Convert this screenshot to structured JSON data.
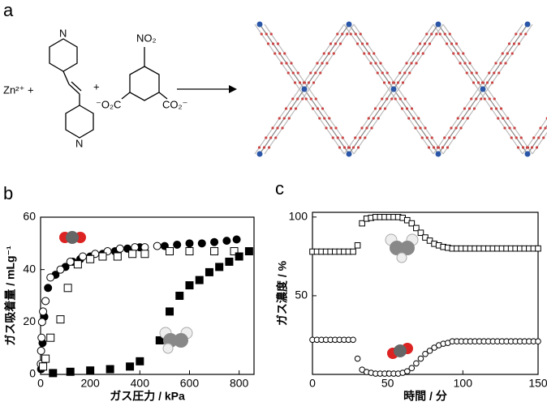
{
  "scheme": {
    "label": "a",
    "metal": "Zn²⁺ +",
    "plus": "+",
    "pyridine_n": [
      "N",
      "N"
    ],
    "nitro": "NO₂",
    "carboxylate_left": "⁻O₂C",
    "carboxylate_right": "CO₂⁻"
  },
  "chart_data": [
    {
      "type": "scatter",
      "label": "b",
      "xlabel": "ガス圧力 / kPa",
      "ylabel": "ガス吸着量 / mLg⁻¹",
      "xlim": [
        0,
        860
      ],
      "ylim": [
        0,
        60
      ],
      "xticks": [
        0,
        200,
        400,
        600,
        800
      ],
      "yticks": [
        0,
        20,
        40,
        60
      ],
      "series": [
        {
          "color": "#000000",
          "marker": "circle",
          "filled": true,
          "x": [
            2,
            5,
            8,
            15,
            30,
            60,
            100,
            130,
            160,
            200,
            250,
            300,
            350,
            400,
            500,
            550,
            600,
            650,
            700,
            750,
            790
          ],
          "values": [
            2,
            4,
            12,
            22,
            33,
            38,
            41,
            43,
            44,
            45,
            46,
            47,
            48,
            48.5,
            49,
            49.5,
            50,
            50,
            50.5,
            51,
            51.5
          ]
        },
        {
          "color": "#000000",
          "marker": "circle",
          "filled": false,
          "x": [
            1,
            2,
            4,
            6,
            10,
            20,
            40,
            80,
            120,
            170,
            220,
            270,
            320,
            380,
            420,
            470
          ],
          "values": [
            4,
            9,
            14,
            20,
            24,
            28,
            37,
            40,
            43,
            45,
            46,
            47,
            48,
            48.5,
            48.5,
            49
          ]
        },
        {
          "color": "#000000",
          "marker": "square",
          "filled": false,
          "x": [
            10,
            20,
            40,
            80,
            110,
            150,
            200,
            250,
            310,
            370,
            420,
            520,
            600,
            700,
            780
          ],
          "values": [
            3,
            6,
            14,
            21,
            33,
            42,
            44,
            45,
            45,
            46,
            46,
            47,
            47,
            47,
            47
          ]
        },
        {
          "color": "#000000",
          "marker": "square",
          "filled": true,
          "x": [
            50,
            120,
            200,
            280,
            360,
            400,
            480,
            520,
            560,
            600,
            640,
            680,
            720,
            760,
            800,
            840
          ],
          "values": [
            0.5,
            1,
            1.5,
            2,
            3,
            5,
            13,
            24,
            30,
            34,
            36,
            39,
            41,
            43,
            45,
            47
          ]
        }
      ]
    },
    {
      "type": "scatter",
      "label": "c",
      "xlabel": "時間 / 分",
      "ylabel": "ガス濃度 / %",
      "xlim": [
        0,
        150
      ],
      "ylim": [
        0,
        103
      ],
      "xticks": [
        0,
        50,
        100,
        150
      ],
      "yticks": [
        50,
        100
      ],
      "x": [
        0,
        3,
        6,
        9,
        12,
        15,
        18,
        21,
        24,
        27,
        30,
        33,
        36,
        39,
        42,
        45,
        48,
        51,
        54,
        57,
        60,
        63,
        66,
        69,
        72,
        75,
        78,
        81,
        84,
        87,
        90,
        93,
        96,
        99,
        102,
        105,
        108,
        111,
        114,
        117,
        120,
        123,
        126,
        129,
        132,
        135,
        138,
        141,
        144,
        147,
        150
      ],
      "series": [
        {
          "color": "#000000",
          "marker": "square",
          "filled": false,
          "values": [
            78,
            78,
            78,
            78,
            78,
            78,
            78,
            78,
            78,
            78,
            82,
            96,
            99,
            99.5,
            100,
            100,
            100,
            100,
            100,
            100,
            99.5,
            98,
            96,
            93,
            90,
            87,
            85,
            83,
            82,
            81,
            80.5,
            80,
            80,
            80,
            80,
            80,
            80,
            80,
            80,
            80,
            80,
            80,
            80,
            80,
            80,
            80,
            80,
            80,
            80,
            80,
            80
          ]
        },
        {
          "color": "#000000",
          "marker": "circle",
          "filled": false,
          "values": [
            22,
            22,
            22,
            22,
            22,
            22,
            22,
            22,
            22,
            22,
            10,
            3,
            1.5,
            1,
            0.5,
            0.5,
            0.5,
            0.5,
            0.5,
            0.5,
            1,
            2,
            4,
            7,
            10,
            13,
            15,
            17,
            18.5,
            19.5,
            20,
            21,
            21,
            21,
            21,
            21,
            21,
            21,
            21,
            21,
            21,
            21,
            21,
            21,
            21,
            21,
            21,
            21,
            21,
            21,
            21
          ]
        }
      ]
    }
  ]
}
